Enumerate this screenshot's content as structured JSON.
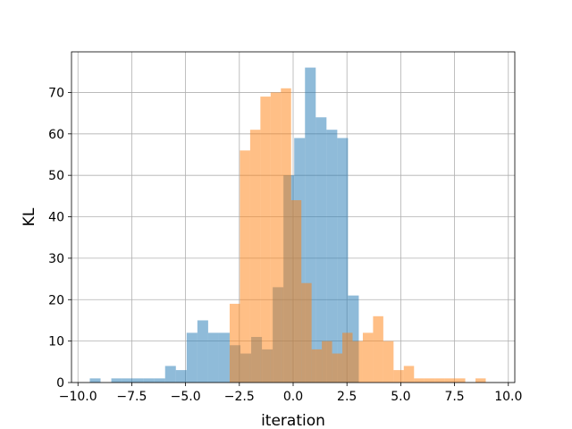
{
  "chart_data": {
    "type": "histogram",
    "xlabel": "iteration",
    "ylabel": "KL",
    "xlim": [
      -10.3,
      10.3
    ],
    "ylim": [
      0,
      79.8
    ],
    "xticks": [
      -10.0,
      -7.5,
      -5.0,
      -2.5,
      0.0,
      2.5,
      5.0,
      7.5,
      10.0
    ],
    "xtick_labels": [
      "−10.0",
      "−7.5",
      "−5.0",
      "−2.5",
      "0.0",
      "2.5",
      "5.0",
      "7.5",
      "10.0"
    ],
    "yticks": [
      0,
      10,
      20,
      30,
      40,
      50,
      60,
      70
    ],
    "ytick_labels": [
      "0",
      "10",
      "20",
      "30",
      "40",
      "50",
      "60",
      "70"
    ],
    "grid": true,
    "series": [
      {
        "color": "#1f77b4",
        "alpha": 0.5,
        "bin_start": -9.45,
        "bin_width": 0.5,
        "counts": [
          1,
          0,
          1,
          1,
          1,
          1,
          1,
          4,
          3,
          12,
          15,
          12,
          12,
          9,
          7,
          11,
          8,
          23,
          50,
          59,
          76,
          64,
          61,
          59,
          21
        ]
      },
      {
        "color": "#ff7f0e",
        "alpha": 0.5,
        "bin_start": -2.95,
        "bin_width": 0.476,
        "counts": [
          19,
          56,
          61,
          69,
          70,
          71,
          44,
          24,
          8,
          10,
          7,
          12,
          10,
          12,
          16,
          10,
          3,
          4,
          1,
          1,
          1,
          1,
          1,
          0,
          1
        ]
      }
    ]
  }
}
